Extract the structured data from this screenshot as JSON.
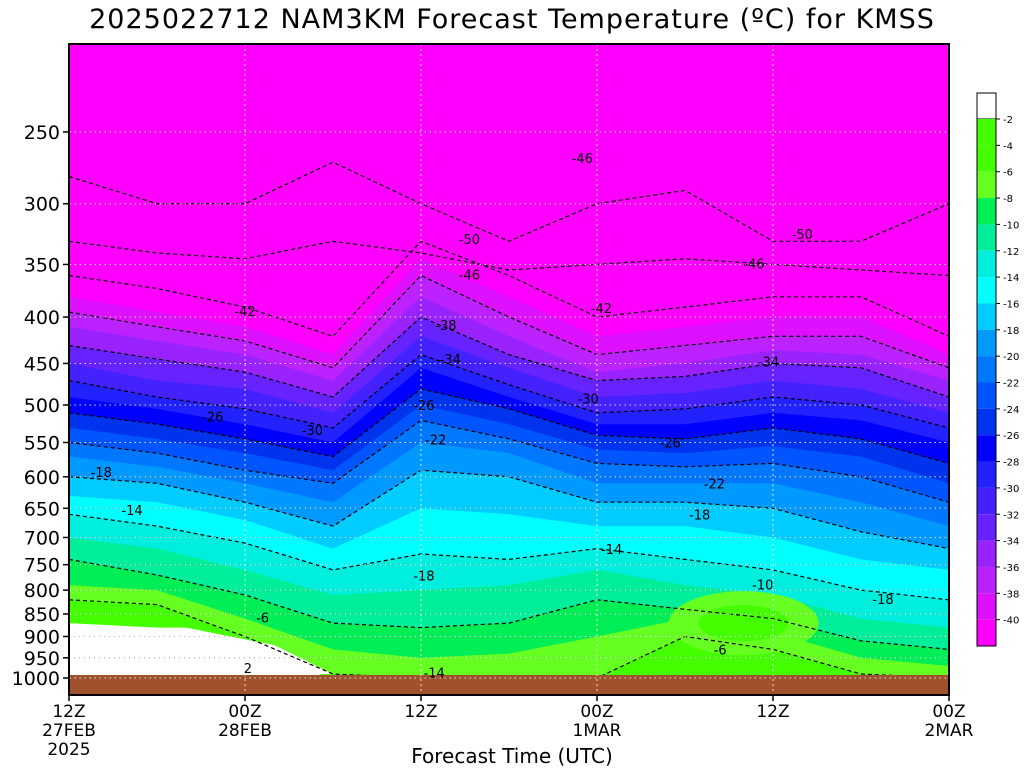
{
  "chart_data": {
    "type": "heatmap",
    "title": "2025022712 NAM3KM Forecast Temperature (ºC) for KMSS",
    "xlabel": "Forecast Time (UTC)",
    "ylabel": "",
    "x_ticks": [
      {
        "hours": 0,
        "lines": [
          "12Z",
          "27FEB",
          "2025"
        ]
      },
      {
        "hours": 12,
        "lines": [
          "00Z",
          "28FEB"
        ]
      },
      {
        "hours": 24,
        "lines": [
          "12Z"
        ]
      },
      {
        "hours": 36,
        "lines": [
          "00Z",
          "1MAR"
        ]
      },
      {
        "hours": 48,
        "lines": [
          "12Z"
        ]
      },
      {
        "hours": 60,
        "lines": [
          "00Z",
          "2MAR"
        ]
      }
    ],
    "xlim_hours": [
      0,
      60
    ],
    "y_ticks": [
      250,
      300,
      350,
      400,
      450,
      500,
      550,
      600,
      650,
      700,
      750,
      800,
      850,
      900,
      950,
      1000
    ],
    "ylim_hpa": [
      200,
      1000
    ],
    "y_scale": "log-pressure",
    "colorbar": {
      "placement": "right",
      "levels": [
        {
          "label": "-2",
          "color": "#ffffff"
        },
        {
          "label": "-4",
          "color": "#44ff00"
        },
        {
          "label": "-6",
          "color": "#66ff22"
        },
        {
          "label": "-8",
          "color": "#00ee55"
        },
        {
          "label": "-10",
          "color": "#00ee99"
        },
        {
          "label": "-12",
          "color": "#00eedd"
        },
        {
          "label": "-14",
          "color": "#00ffff"
        },
        {
          "label": "-16",
          "color": "#00ccff"
        },
        {
          "label": "-18",
          "color": "#0099ff"
        },
        {
          "label": "-20",
          "color": "#0077ff"
        },
        {
          "label": "-22",
          "color": "#0055ff"
        },
        {
          "label": "-24",
          "color": "#0033ee"
        },
        {
          "label": "-26",
          "color": "#0000ff"
        },
        {
          "label": "-28",
          "color": "#2222ff"
        },
        {
          "label": "-30",
          "color": "#4422ff"
        },
        {
          "label": "-32",
          "color": "#6622ff"
        },
        {
          "label": "-34",
          "color": "#9922ff"
        },
        {
          "label": "-36",
          "color": "#bb22ff"
        },
        {
          "label": "-38",
          "color": "#dd11ff"
        },
        {
          "label": "-40",
          "color": "#ff00ff"
        }
      ],
      "top_color": "#ffffff"
    },
    "contour_labels": [
      {
        "text": "-46",
        "hours": 35.0,
        "hpa": 267
      },
      {
        "text": "-50",
        "hours": 27.3,
        "hpa": 328
      },
      {
        "text": "-50",
        "hours": 50.0,
        "hpa": 324
      },
      {
        "text": "-46",
        "hours": 27.3,
        "hpa": 359
      },
      {
        "text": "-46",
        "hours": 46.7,
        "hpa": 349
      },
      {
        "text": "-42",
        "hours": 12.0,
        "hpa": 394
      },
      {
        "text": "-42",
        "hours": 36.3,
        "hpa": 391
      },
      {
        "text": "-38",
        "hours": 25.7,
        "hpa": 408
      },
      {
        "text": "-34",
        "hours": 26.0,
        "hpa": 445
      },
      {
        "text": "-34",
        "hours": 47.7,
        "hpa": 448
      },
      {
        "text": "-30",
        "hours": 16.6,
        "hpa": 533
      },
      {
        "text": "-30",
        "hours": 35.4,
        "hpa": 492
      },
      {
        "text": "-26",
        "hours": 9.8,
        "hpa": 515
      },
      {
        "text": "-26",
        "hours": 24.2,
        "hpa": 500
      },
      {
        "text": "-26",
        "hours": 41.0,
        "hpa": 550
      },
      {
        "text": "-22",
        "hours": 25.0,
        "hpa": 546
      },
      {
        "text": "-22",
        "hours": 44.0,
        "hpa": 610
      },
      {
        "text": "-18",
        "hours": 2.2,
        "hpa": 593
      },
      {
        "text": "-18",
        "hours": 43.0,
        "hpa": 660
      },
      {
        "text": "-18",
        "hours": 24.2,
        "hpa": 771
      },
      {
        "text": "-18",
        "hours": 55.5,
        "hpa": 818
      },
      {
        "text": "-14",
        "hours": 4.3,
        "hpa": 653
      },
      {
        "text": "-14",
        "hours": 37.0,
        "hpa": 721
      },
      {
        "text": "-14",
        "hours": 24.9,
        "hpa": 986
      },
      {
        "text": "-10",
        "hours": 47.3,
        "hpa": 789
      },
      {
        "text": "-6",
        "hours": 13.2,
        "hpa": 858
      },
      {
        "text": "-6",
        "hours": 44.4,
        "hpa": 930
      },
      {
        "text": "2",
        "hours": 12.2,
        "hpa": 975
      }
    ]
  }
}
